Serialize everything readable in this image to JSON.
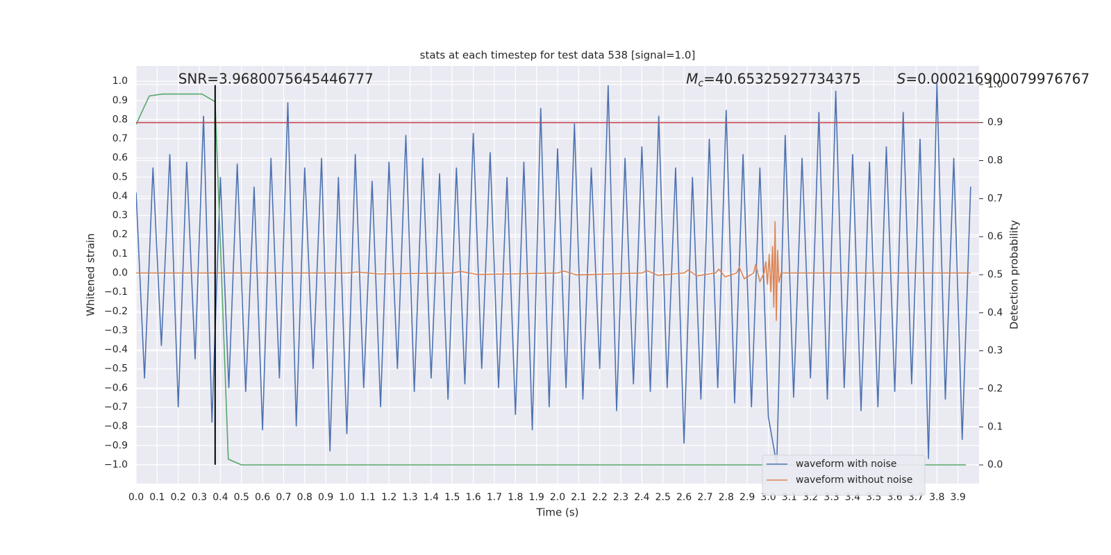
{
  "chart_data": {
    "type": "line",
    "title": "stats at each timestep for test data 538 [signal=1.0]",
    "xlabel": "Time (s)",
    "ylabel": "Whitened strain",
    "y2label": "Detection probability",
    "xlim": [
      0,
      4.0
    ],
    "ylim": [
      -1.098,
      1.08
    ],
    "y2lim": [
      -0.049,
      1.049
    ],
    "xticks": [
      {
        "value": 0,
        "label": "0.0"
      },
      0.1,
      0.2,
      0.3,
      0.4,
      0.5,
      0.6,
      0.7,
      0.8,
      0.9,
      {
        "value": 1,
        "label": "1.0"
      },
      1.1,
      1.2,
      1.3,
      1.4,
      1.5,
      1.6,
      1.7,
      1.8,
      1.9,
      {
        "value": 2,
        "label": "2.0"
      },
      2.1,
      2.2,
      2.3,
      2.4,
      2.5,
      2.6,
      2.7,
      2.8,
      2.9,
      {
        "value": 3,
        "label": "3.0"
      },
      3.1,
      3.2,
      3.3,
      3.4,
      3.5,
      3.6,
      3.7,
      3.8,
      3.9
    ],
    "yticks": [
      {
        "value": -1,
        "label": "−1.0"
      },
      {
        "value": -0.9,
        "label": "−0.9"
      },
      {
        "value": -0.8,
        "label": "−0.8"
      },
      {
        "value": -0.7,
        "label": "−0.7"
      },
      {
        "value": -0.6,
        "label": "−0.6"
      },
      {
        "value": -0.5,
        "label": "−0.5"
      },
      {
        "value": -0.4,
        "label": "−0.4"
      },
      {
        "value": -0.3,
        "label": "−0.3"
      },
      {
        "value": -0.2,
        "label": "−0.2"
      },
      {
        "value": -0.1,
        "label": "−0.1"
      },
      {
        "value": 0,
        "label": "0.0"
      },
      0.1,
      0.2,
      0.3,
      0.4,
      0.5,
      0.6,
      0.7,
      0.8,
      0.9,
      {
        "value": 1,
        "label": "1.0"
      }
    ],
    "y2ticks": [
      {
        "value": 0,
        "label": "0.0"
      },
      0.1,
      0.2,
      0.3,
      0.4,
      0.5,
      0.6,
      0.7,
      0.8,
      0.9,
      {
        "value": 1,
        "label": "1.0"
      }
    ],
    "grid": true,
    "legend": "lower right",
    "series": [
      {
        "name": "waveform with noise",
        "color": "#4c72b0",
        "x": [
          0,
          0.04,
          0.08,
          0.12,
          0.16,
          0.2,
          0.24,
          0.28,
          0.32,
          0.36,
          0.4,
          0.44,
          0.48,
          0.52,
          0.56,
          0.6,
          0.64,
          0.68,
          0.72,
          0.76,
          0.8,
          0.84,
          0.88,
          0.92,
          0.96,
          1,
          1.04,
          1.08,
          1.12,
          1.16,
          1.2,
          1.24,
          1.28,
          1.32,
          1.36,
          1.4,
          1.44,
          1.48,
          1.52,
          1.56,
          1.6,
          1.64,
          1.68,
          1.72,
          1.76,
          1.8,
          1.84,
          1.88,
          1.92,
          1.96,
          2,
          2.04,
          2.08,
          2.12,
          2.16,
          2.2,
          2.24,
          2.28,
          2.32,
          2.36,
          2.4,
          2.44,
          2.48,
          2.52,
          2.56,
          2.6,
          2.64,
          2.68,
          2.72,
          2.76,
          2.8,
          2.84,
          2.88,
          2.92,
          2.96,
          3,
          3.04,
          3.08,
          3.12,
          3.16,
          3.2,
          3.24,
          3.28,
          3.32,
          3.36,
          3.4,
          3.44,
          3.48,
          3.52,
          3.56,
          3.6,
          3.64,
          3.68,
          3.72,
          3.76,
          3.8,
          3.84,
          3.88,
          3.92,
          3.96
        ],
        "values": [
          0.42,
          -0.55,
          0.55,
          -0.38,
          0.62,
          -0.7,
          0.58,
          -0.45,
          0.82,
          -0.78,
          0.5,
          -0.6,
          0.57,
          -0.62,
          0.45,
          -0.82,
          0.6,
          -0.55,
          0.89,
          -0.8,
          0.55,
          -0.5,
          0.6,
          -0.93,
          0.5,
          -0.84,
          0.62,
          -0.6,
          0.48,
          -0.7,
          0.58,
          -0.5,
          0.72,
          -0.62,
          0.6,
          -0.55,
          0.52,
          -0.66,
          0.55,
          -0.58,
          0.73,
          -0.5,
          0.63,
          -0.6,
          0.5,
          -0.74,
          0.58,
          -0.82,
          0.86,
          -0.7,
          0.65,
          -0.6,
          0.78,
          -0.66,
          0.55,
          -0.5,
          0.98,
          -0.72,
          0.6,
          -0.58,
          0.66,
          -0.62,
          0.82,
          -0.6,
          0.55,
          -0.89,
          0.5,
          -0.66,
          0.7,
          -0.6,
          0.85,
          -0.68,
          0.62,
          -0.7,
          0.55,
          -0.75,
          -1.0,
          0.72,
          -0.65,
          0.6,
          -0.55,
          0.84,
          -0.66,
          0.95,
          -0.6,
          0.62,
          -0.72,
          0.58,
          -0.7,
          0.66,
          -0.62,
          0.84,
          -0.58,
          0.7,
          -0.97,
          0.99,
          -0.66,
          0.6,
          -0.87,
          0.45
        ]
      },
      {
        "name": "waveform without noise",
        "color": "#dd8452",
        "x": [
          0,
          1.0,
          1.05,
          1.1,
          1.15,
          1.5,
          1.54,
          1.58,
          1.62,
          2.0,
          2.03,
          2.06,
          2.09,
          2.4,
          2.425,
          2.45,
          2.475,
          2.6,
          2.62,
          2.64,
          2.66,
          2.75,
          2.765,
          2.78,
          2.795,
          2.85,
          2.862,
          2.874,
          2.886,
          2.93,
          2.94,
          2.95,
          2.96,
          2.98,
          2.988,
          2.996,
          3.004,
          3.012,
          3.02,
          3.026,
          3.032,
          3.038,
          3.044,
          3.05,
          3.06,
          3.96
        ],
        "values": [
          0,
          0,
          0.005,
          0,
          -0.005,
          0,
          0.008,
          0,
          -0.008,
          0,
          0.01,
          0,
          -0.01,
          0,
          0.012,
          0,
          -0.012,
          0,
          0.015,
          0,
          -0.015,
          0,
          0.02,
          0,
          -0.02,
          0,
          0.03,
          0,
          -0.03,
          0,
          0.045,
          0,
          -0.045,
          0,
          0.06,
          -0.06,
          0.1,
          -0.1,
          0.14,
          -0.18,
          0.27,
          -0.25,
          0.12,
          -0.05,
          0,
          0
        ]
      },
      {
        "color": "#55a868",
        "axis": "y2",
        "x": [
          0,
          0.0625,
          0.125,
          0.1875,
          0.25,
          0.3125,
          0.375,
          0.4375,
          0.5,
          3.9375
        ],
        "values": [
          0.895,
          0.97,
          0.975,
          0.975,
          0.975,
          0.975,
          0.955,
          0.015,
          0,
          0
        ]
      }
    ],
    "hline": {
      "value": 0.9,
      "axis": "y2",
      "color": "#c44e52"
    },
    "vline": {
      "value": 0.375,
      "ymin": -1,
      "ymax": 0.98,
      "color": "#000000"
    },
    "annotations": [
      {
        "x": 0.2,
        "y": 1.01,
        "text": "SNR=3.9680075645446777"
      },
      {
        "x": 2.61,
        "y": 1.01,
        "symbol": "M",
        "subscript": "c",
        "text": "=40.65325927734375"
      },
      {
        "x": 3.61,
        "y": 1.01,
        "symbol": "S",
        "text": "=0.000216900079976767"
      }
    ]
  }
}
